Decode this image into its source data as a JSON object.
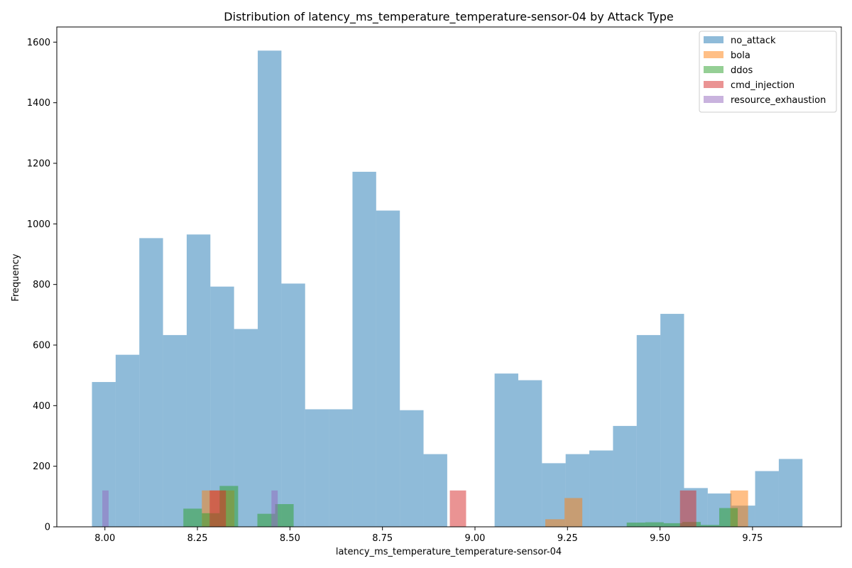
{
  "chart_data": {
    "type": "bar",
    "title": "Distribution of latency_ms_temperature_temperature-sensor-04 by Attack Type",
    "xlabel": "latency_ms_temperature_temperature-sensor-04",
    "ylabel": "Frequency",
    "xlim": [
      7.87,
      9.99
    ],
    "ylim": [
      0,
      1650
    ],
    "xticks": [
      8.0,
      8.25,
      8.5,
      8.75,
      9.0,
      9.25,
      9.5,
      9.75
    ],
    "xtick_labels": [
      "8.00",
      "8.25",
      "8.50",
      "8.75",
      "9.00",
      "9.25",
      "9.50",
      "9.75"
    ],
    "yticks": [
      0,
      200,
      400,
      600,
      800,
      1000,
      1200,
      1400,
      1600
    ],
    "ytick_labels": [
      "0",
      "200",
      "400",
      "600",
      "800",
      "1000",
      "1200",
      "1400",
      "1600"
    ],
    "grid": false,
    "legend_position": "top-right",
    "series": [
      {
        "name": "no_attack",
        "color": "#1f77b4",
        "opacity": 0.5,
        "bins": [
          {
            "x0": 7.965,
            "x1": 8.029,
            "value": 478
          },
          {
            "x0": 8.029,
            "x1": 8.093,
            "value": 568
          },
          {
            "x0": 8.093,
            "x1": 8.157,
            "value": 953
          },
          {
            "x0": 8.157,
            "x1": 8.221,
            "value": 633
          },
          {
            "x0": 8.221,
            "x1": 8.285,
            "value": 965
          },
          {
            "x0": 8.285,
            "x1": 8.349,
            "value": 793
          },
          {
            "x0": 8.349,
            "x1": 8.413,
            "value": 653
          },
          {
            "x0": 8.413,
            "x1": 8.477,
            "value": 1572
          },
          {
            "x0": 8.477,
            "x1": 8.541,
            "value": 803
          },
          {
            "x0": 8.541,
            "x1": 8.605,
            "value": 388
          },
          {
            "x0": 8.605,
            "x1": 8.669,
            "value": 388
          },
          {
            "x0": 8.669,
            "x1": 8.733,
            "value": 1172
          },
          {
            "x0": 8.733,
            "x1": 8.797,
            "value": 1044
          },
          {
            "x0": 8.797,
            "x1": 8.861,
            "value": 385
          },
          {
            "x0": 8.861,
            "x1": 8.925,
            "value": 240
          },
          {
            "x0": 8.925,
            "x1": 8.989,
            "value": 0
          },
          {
            "x0": 8.989,
            "x1": 9.053,
            "value": 0
          },
          {
            "x0": 9.053,
            "x1": 9.117,
            "value": 506
          },
          {
            "x0": 9.117,
            "x1": 9.181,
            "value": 484
          },
          {
            "x0": 9.181,
            "x1": 9.245,
            "value": 210
          },
          {
            "x0": 9.245,
            "x1": 9.309,
            "value": 240
          },
          {
            "x0": 9.309,
            "x1": 9.373,
            "value": 252
          },
          {
            "x0": 9.373,
            "x1": 9.437,
            "value": 333
          },
          {
            "x0": 9.437,
            "x1": 9.501,
            "value": 633
          },
          {
            "x0": 9.501,
            "x1": 9.565,
            "value": 703
          },
          {
            "x0": 9.565,
            "x1": 9.629,
            "value": 128
          },
          {
            "x0": 9.629,
            "x1": 9.693,
            "value": 110
          },
          {
            "x0": 9.693,
            "x1": 9.757,
            "value": 70
          },
          {
            "x0": 9.757,
            "x1": 9.821,
            "value": 184
          },
          {
            "x0": 9.821,
            "x1": 9.885,
            "value": 224
          }
        ]
      },
      {
        "name": "bola",
        "color": "#ff7f0e",
        "opacity": 0.5,
        "bins": [
          {
            "x0": 8.262,
            "x1": 8.306,
            "value": 120
          },
          {
            "x0": 8.306,
            "x1": 8.35,
            "value": 120
          },
          {
            "x0": 9.19,
            "x1": 9.242,
            "value": 25
          },
          {
            "x0": 9.242,
            "x1": 9.29,
            "value": 95
          },
          {
            "x0": 9.69,
            "x1": 9.738,
            "value": 120
          }
        ]
      },
      {
        "name": "ddos",
        "color": "#2ca02c",
        "opacity": 0.5,
        "bins": [
          {
            "x0": 8.212,
            "x1": 8.262,
            "value": 60
          },
          {
            "x0": 8.262,
            "x1": 8.31,
            "value": 45
          },
          {
            "x0": 8.31,
            "x1": 8.36,
            "value": 135
          },
          {
            "x0": 8.412,
            "x1": 8.46,
            "value": 43
          },
          {
            "x0": 8.46,
            "x1": 8.51,
            "value": 75
          },
          {
            "x0": 9.41,
            "x1": 9.46,
            "value": 14
          },
          {
            "x0": 9.46,
            "x1": 9.51,
            "value": 15
          },
          {
            "x0": 9.51,
            "x1": 9.56,
            "value": 12
          },
          {
            "x0": 9.56,
            "x1": 9.61,
            "value": 16
          },
          {
            "x0": 9.61,
            "x1": 9.66,
            "value": 6
          },
          {
            "x0": 9.66,
            "x1": 9.71,
            "value": 62
          }
        ]
      },
      {
        "name": "cmd_injection",
        "color": "#d62728",
        "opacity": 0.5,
        "bins": [
          {
            "x0": 8.283,
            "x1": 8.327,
            "value": 120
          },
          {
            "x0": 8.932,
            "x1": 8.976,
            "value": 120
          },
          {
            "x0": 9.554,
            "x1": 9.598,
            "value": 120
          }
        ]
      },
      {
        "name": "resource_exhaustion",
        "color": "#9467bd",
        "opacity": 0.5,
        "bins": [
          {
            "x0": 7.993,
            "x1": 8.01,
            "value": 120
          },
          {
            "x0": 8.45,
            "x1": 8.467,
            "value": 120
          }
        ]
      }
    ]
  }
}
